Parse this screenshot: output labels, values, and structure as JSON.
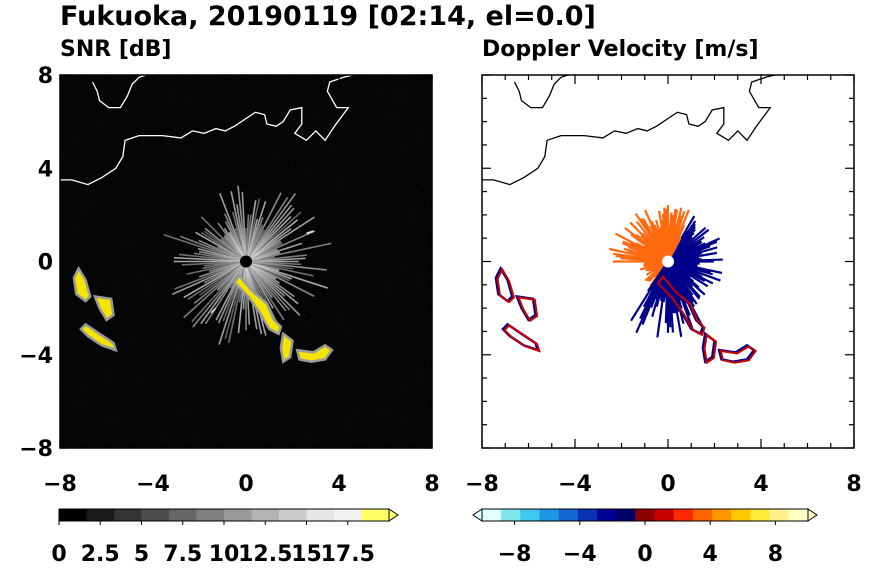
{
  "figure": {
    "title": "Fukuoka, 20190119 [02:14, el=0.0]"
  },
  "chart_data": [
    {
      "type": "heatmap",
      "panel": "left",
      "title": "SNR [dB]",
      "xlim": [
        -8,
        8
      ],
      "ylim": [
        -8,
        8
      ],
      "x_ticks": [
        "−8",
        "−4",
        "0",
        "4",
        "8"
      ],
      "y_ticks": [
        "8",
        "4",
        "0",
        "−4",
        "−8"
      ],
      "x_tick_values": [
        -8,
        -4,
        0,
        4,
        8
      ],
      "y_tick_values": [
        8,
        4,
        0,
        -4,
        -8
      ],
      "background_color": "#050505",
      "echo_color": "#f5e400",
      "radar_center": [
        0,
        0
      ],
      "colorbar": {
        "range": [
          0,
          20
        ],
        "tick_labels": [
          "0",
          "2.5",
          "5",
          "7.5",
          "10",
          "12.5",
          "15",
          "17.5"
        ],
        "tick_values": [
          0,
          2.5,
          5,
          7.5,
          10,
          12.5,
          15,
          17.5
        ],
        "extend": "max",
        "colors": [
          "#000000",
          "#1a1a1a",
          "#333333",
          "#4d4d4d",
          "#666666",
          "#808080",
          "#999999",
          "#b3b3b3",
          "#cccccc",
          "#e6e6e6",
          "#f2f2f2",
          "#ffff66"
        ]
      }
    },
    {
      "type": "heatmap",
      "panel": "right",
      "title": "Doppler Velocity [m/s]",
      "xlim": [
        -8,
        8
      ],
      "ylim": [
        -8,
        8
      ],
      "x_ticks": [
        "−8",
        "−4",
        "0",
        "4",
        "8"
      ],
      "x_tick_values": [
        -8,
        -4,
        0,
        4,
        8
      ],
      "background_color": "#ffffff",
      "approaching_color": "#00008b",
      "receding_color": "#ff6a10",
      "radar_center": [
        0,
        0
      ],
      "colorbar": {
        "range": [
          -10,
          10
        ],
        "tick_labels": [
          "−8",
          "−4",
          "0",
          "4",
          "8"
        ],
        "tick_values": [
          -8,
          -4,
          0,
          4,
          8
        ],
        "extend": "both",
        "colors": [
          "#e0ffff",
          "#7fe6f0",
          "#3cc8f0",
          "#1e96e6",
          "#1464d2",
          "#0a32b4",
          "#000096",
          "#000064",
          "#8b0000",
          "#c80000",
          "#ff2800",
          "#ff6400",
          "#ff9600",
          "#ffc800",
          "#ffeb3c",
          "#fff08c",
          "#ffffc8"
        ]
      }
    }
  ]
}
